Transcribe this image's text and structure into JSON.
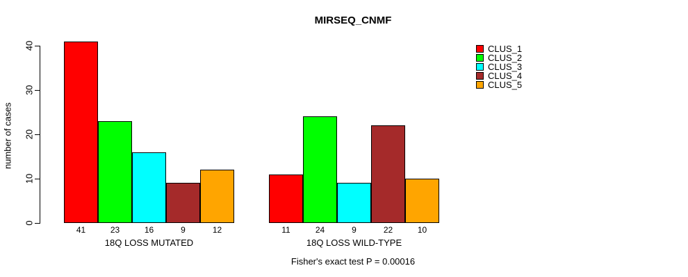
{
  "chart_data": {
    "type": "bar",
    "title": "MIRSEQ_CNMF",
    "ylabel": "number of cases",
    "xlabel": "",
    "ylim": [
      0,
      40
    ],
    "yticks": [
      0,
      10,
      20,
      30,
      40
    ],
    "grid": false,
    "bar_value_labels": true,
    "legend_position": "top-right",
    "legend_entries": [
      "CLUS_1",
      "CLUS_2",
      "CLUS_3",
      "CLUS_4",
      "CLUS_5"
    ],
    "series_colors": [
      "#FF0000",
      "#00FF00",
      "#00FFFF",
      "#A52A2A",
      "#FFA500"
    ],
    "groups": [
      {
        "label": "18Q LOSS MUTATED",
        "values": [
          41,
          23,
          16,
          9,
          12
        ]
      },
      {
        "label": "18Q LOSS WILD-TYPE",
        "values": [
          11,
          24,
          9,
          22,
          10
        ]
      }
    ],
    "annotation": "Fisher's exact test P = 0.00016",
    "axis_color": "#000000",
    "background_color": "#FFFFFF"
  }
}
